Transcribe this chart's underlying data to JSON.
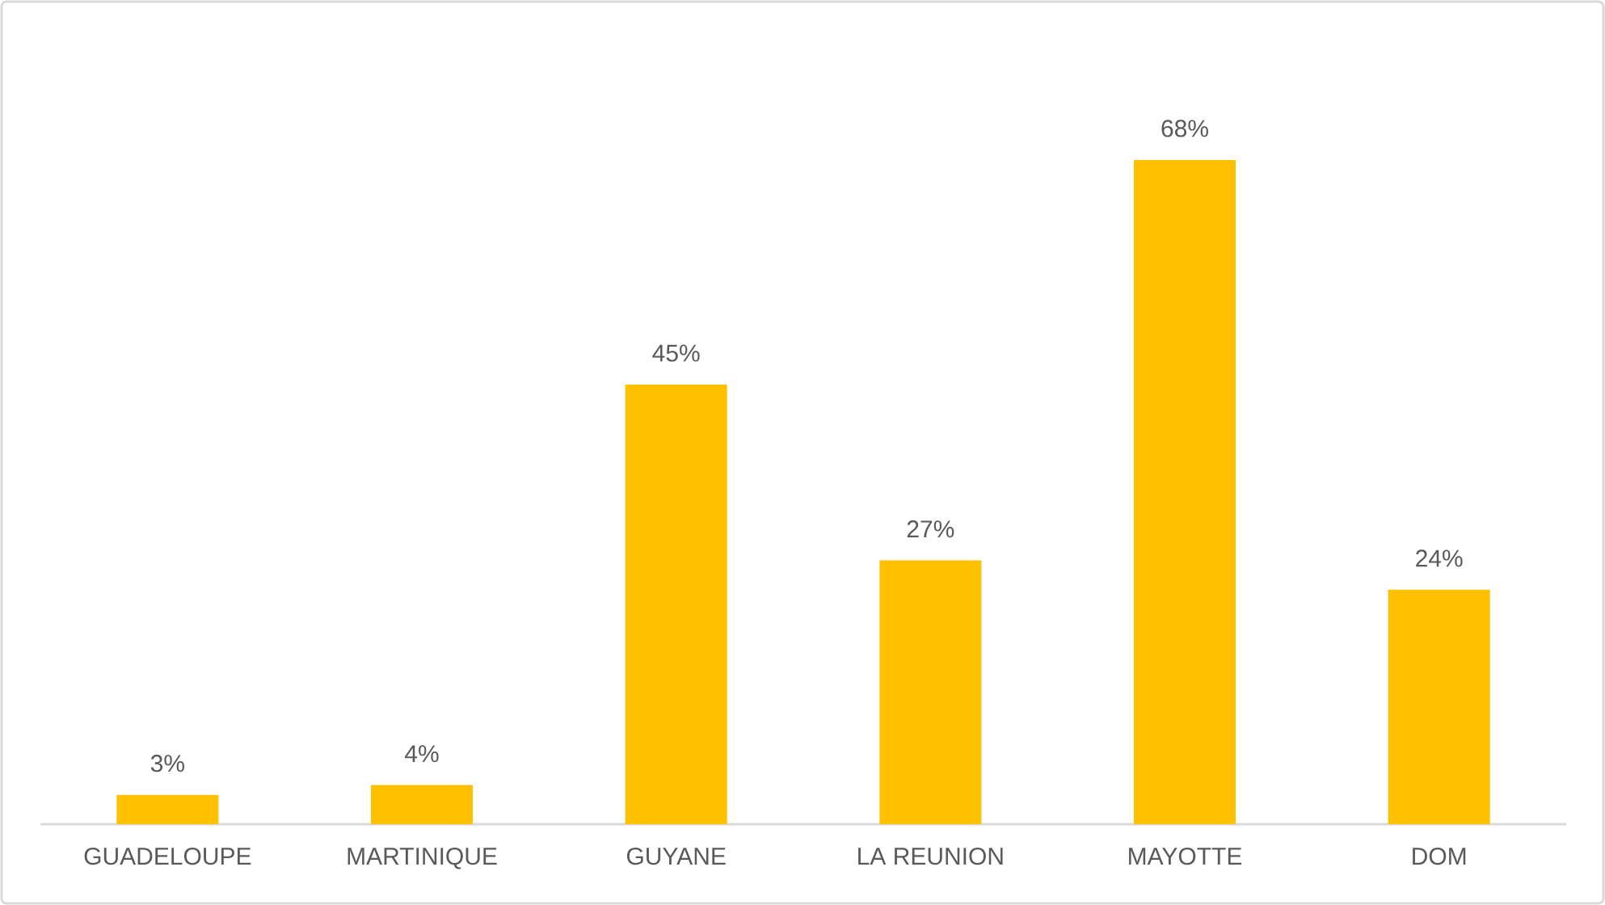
{
  "chart_data": {
    "type": "bar",
    "categories": [
      "GUADELOUPE",
      "MARTINIQUE",
      "GUYANE",
      "LA REUNION",
      "MAYOTTE",
      "DOM"
    ],
    "values": [
      3,
      4,
      45,
      27,
      68,
      24
    ],
    "value_labels": [
      "3%",
      "4%",
      "45%",
      "27%",
      "68%",
      "24%"
    ],
    "color": "#ffc000",
    "tick_labels": "x",
    "grid": false,
    "legend": false
  }
}
